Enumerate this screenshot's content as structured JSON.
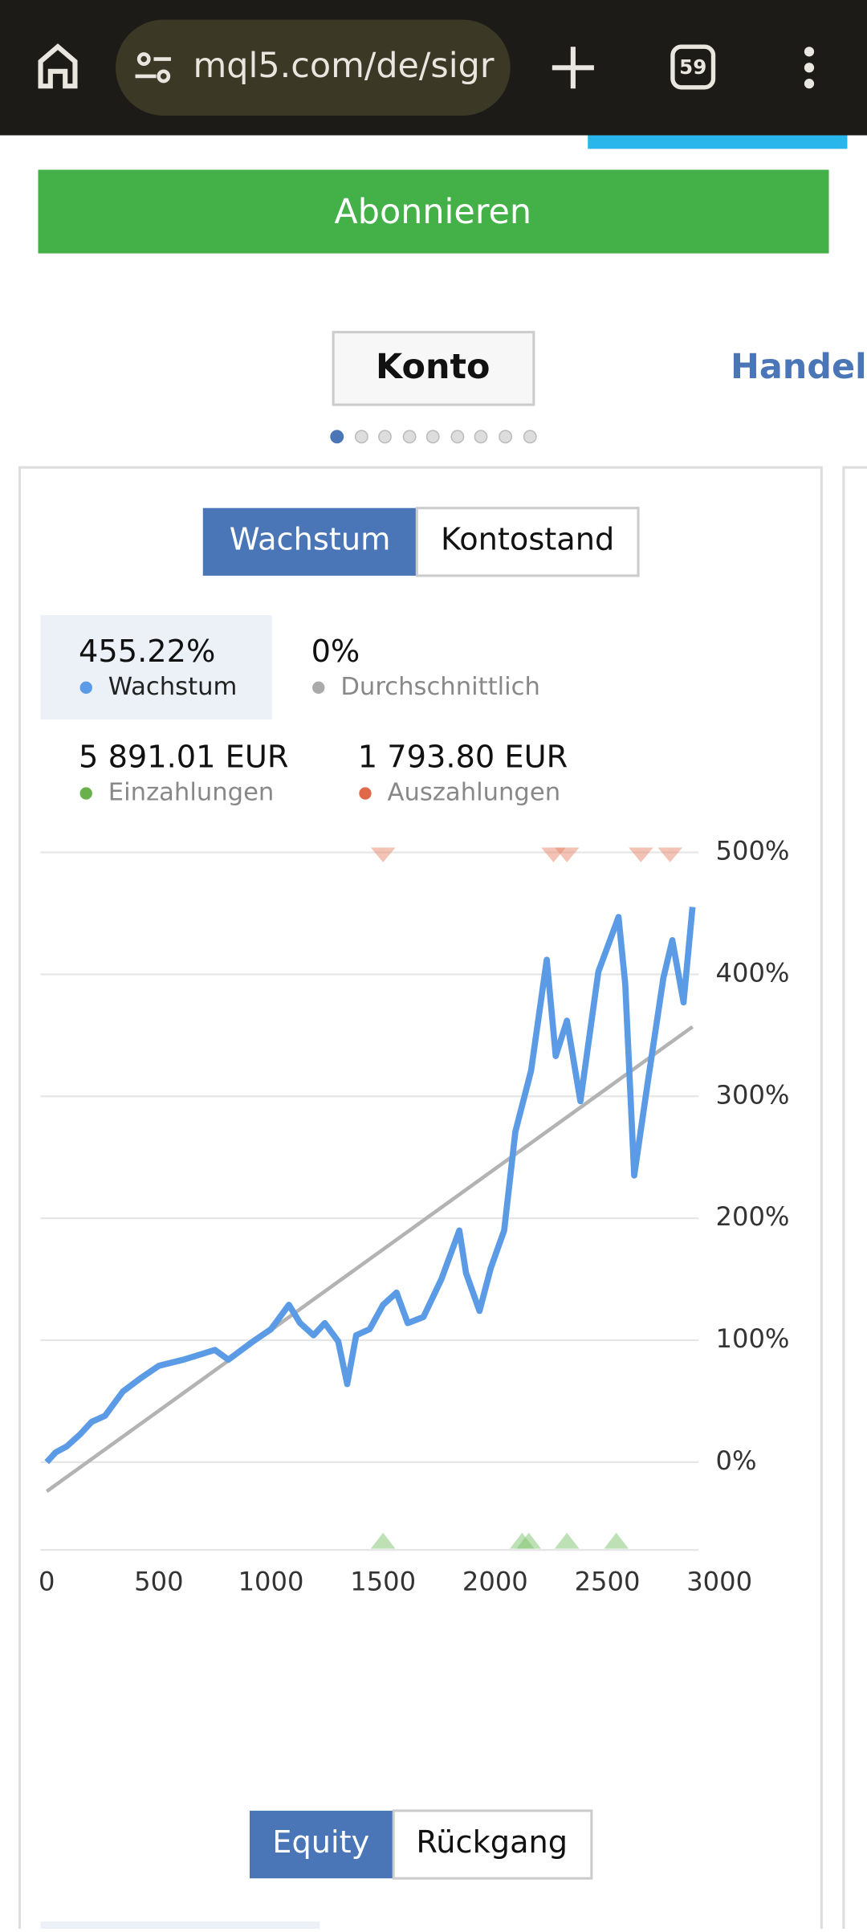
{
  "browser": {
    "url": "mql5.com/de/sigr",
    "tab_count": 59
  },
  "subscribe_button": "Abonnieren",
  "tabs": [
    "Konto",
    "Handels"
  ],
  "chart_toggle": [
    "Wachstum",
    "Kontostand"
  ],
  "stats": [
    {
      "value": "455.22%",
      "label": "Wachstum"
    },
    {
      "value": "0%",
      "label": "Durchschnittlich"
    },
    {
      "value": "5 891.01 EUR",
      "label": "Einzahlungen"
    },
    {
      "value": "1 793.80 EUR",
      "label": "Auszahlungen"
    }
  ],
  "chart_data": {
    "type": "line",
    "xlim": [
      0,
      3000
    ],
    "xticks": [
      0,
      500,
      1000,
      1500,
      2000,
      2500,
      3000
    ],
    "ylim": [
      -72,
      505
    ],
    "yticks": [
      {
        "value": 0,
        "label": "0%"
      },
      {
        "value": 100,
        "label": "100%"
      },
      {
        "value": 200,
        "label": "200%"
      },
      {
        "value": 300,
        "label": "300%"
      },
      {
        "value": 400,
        "label": "400%"
      },
      {
        "value": 500,
        "label": "500%"
      }
    ],
    "grid": true,
    "series": [
      {
        "color": "#5b9be6",
        "x": [
          0,
          40,
          90,
          150,
          200,
          260,
          340,
          420,
          500,
          610,
          750,
          810,
          920,
          1000,
          1080,
          1130,
          1190,
          1240,
          1300,
          1340,
          1380,
          1440,
          1500,
          1560,
          1610,
          1680,
          1760,
          1840,
          1870,
          1930,
          1980,
          2040,
          2090,
          2160,
          2230,
          2270,
          2320,
          2380,
          2460,
          2550,
          2580,
          2620,
          2680,
          2750,
          2790,
          2840,
          2880
        ],
        "values": [
          0,
          8,
          13,
          23,
          33,
          38,
          58,
          69,
          79,
          84,
          92,
          84,
          99,
          109,
          129,
          114,
          104,
          114,
          99,
          64,
          104,
          109,
          129,
          139,
          114,
          119,
          150,
          190,
          155,
          124,
          159,
          190,
          271,
          321,
          412,
          333,
          362,
          296,
          402,
          447,
          392,
          235,
          311,
          397,
          428,
          377,
          455.22
        ]
      },
      {
        "color": "#b3b3b3",
        "x": [
          0,
          2880
        ],
        "values": [
          -24,
          357
        ]
      }
    ],
    "deposits": {
      "color": "#7cc26b",
      "x": [
        1500,
        2120,
        2150,
        2320,
        2540
      ]
    },
    "withdrawals": {
      "color": "#e8876b",
      "x": [
        1500,
        2260,
        2320,
        2650,
        2780
      ]
    }
  },
  "bottom_toggle": [
    "Equity",
    "Rückgang"
  ]
}
